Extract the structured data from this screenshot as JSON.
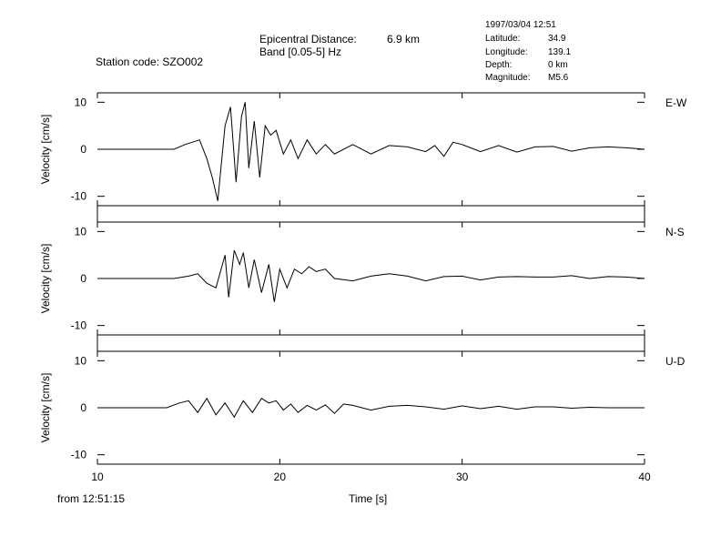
{
  "header": {
    "station_label": "Station code: SZO002",
    "epicentral_label": "Epicentral Distance:",
    "epicentral_value": "6.9 km",
    "band_label": "Band [0.05-5] Hz",
    "datetime": "1997/03/04 12:51",
    "latitude_label": "Latitude:",
    "latitude_value": "34.9",
    "longitude_label": "Longitude:",
    "longitude_value": "139.1",
    "depth_label": "Depth:",
    "depth_value": "0 km",
    "magnitude_label": "Magnitude:",
    "magnitude_value": "M5.6"
  },
  "footer": {
    "from_label": "from 12:51:15"
  },
  "chart_data": {
    "type": "line",
    "xlabel": "Time [s]",
    "ylabel": "Velocity [cm/s]",
    "xlim": [
      10,
      40
    ],
    "ylim": [
      -12,
      12
    ],
    "x_ticks": [
      10,
      20,
      30,
      40
    ],
    "y_ticks": [
      10,
      0,
      -10
    ],
    "grid": false,
    "series": [
      {
        "name": "E-W",
        "x": [
          10,
          14.2,
          14.8,
          15.2,
          15.6,
          16.0,
          16.3,
          16.6,
          16.8,
          17.0,
          17.3,
          17.6,
          17.9,
          18.1,
          18.3,
          18.6,
          18.9,
          19.2,
          19.5,
          19.8,
          20.2,
          20.6,
          21.0,
          21.5,
          22.0,
          22.5,
          23.0,
          24.0,
          25.0,
          26.0,
          27.0,
          28.0,
          28.5,
          29.0,
          29.5,
          30.0,
          31.0,
          32.0,
          33.0,
          34.0,
          35.0,
          36.0,
          37.0,
          38.0,
          39.0,
          40.0
        ],
        "values": [
          0,
          0,
          1,
          1.5,
          2,
          -2,
          -6,
          -11,
          -3,
          5,
          9,
          -7,
          7,
          10,
          -4,
          6,
          -6,
          5,
          3,
          4,
          -1,
          2,
          -2,
          2,
          -1,
          1,
          -1,
          1,
          -1,
          0.8,
          0.5,
          -0.5,
          0.8,
          -1.5,
          1.5,
          1,
          -0.5,
          0.8,
          -0.6,
          0.5,
          0.6,
          -0.4,
          0.3,
          0.5,
          0.3,
          0
        ]
      },
      {
        "name": "N-S",
        "x": [
          10,
          14.2,
          15.0,
          15.5,
          16.0,
          16.5,
          17.0,
          17.2,
          17.5,
          17.8,
          18.0,
          18.3,
          18.6,
          19.0,
          19.4,
          19.7,
          20.0,
          20.4,
          20.8,
          21.2,
          21.6,
          22.0,
          22.5,
          23.0,
          24.0,
          25.0,
          26.0,
          27.0,
          28.0,
          29.0,
          30.0,
          31.0,
          32.0,
          33.0,
          34.0,
          35.0,
          36.0,
          37.0,
          38.0,
          39.0,
          40.0
        ],
        "values": [
          0,
          0,
          0.5,
          1,
          -1,
          -2,
          5,
          -4,
          6,
          3,
          5.5,
          -2,
          4,
          -3,
          3,
          -5,
          2,
          -2,
          2,
          1,
          2.5,
          1.5,
          2,
          0,
          -0.5,
          0.5,
          1,
          0.5,
          -0.5,
          0.4,
          0.5,
          -0.3,
          0.3,
          0.4,
          0.3,
          0.3,
          0.6,
          0,
          0.4,
          0.3,
          0
        ]
      },
      {
        "name": "U-D",
        "x": [
          10,
          13.8,
          14.5,
          15.0,
          15.5,
          16.0,
          16.5,
          17.0,
          17.5,
          18.0,
          18.5,
          19.0,
          19.4,
          19.8,
          20.2,
          20.6,
          21.0,
          21.5,
          22.0,
          22.5,
          23.0,
          23.5,
          24.0,
          25.0,
          26.0,
          27.0,
          28.0,
          29.0,
          30.0,
          31.0,
          32.0,
          33.0,
          34.0,
          35.0,
          36.0,
          37.0,
          38.0,
          39.0,
          40.0
        ],
        "values": [
          0,
          0,
          1,
          1.5,
          -1,
          2,
          -1.5,
          1,
          -2,
          1.5,
          -1,
          2,
          1,
          1.5,
          -0.5,
          0.8,
          -1,
          0.5,
          -0.5,
          0.6,
          -1.2,
          0.8,
          0.5,
          -0.5,
          0.3,
          0.5,
          0.2,
          -0.3,
          0.4,
          -0.2,
          0.3,
          -0.3,
          0.2,
          0.2,
          -0.1,
          0.1,
          0,
          0,
          0
        ]
      }
    ]
  }
}
